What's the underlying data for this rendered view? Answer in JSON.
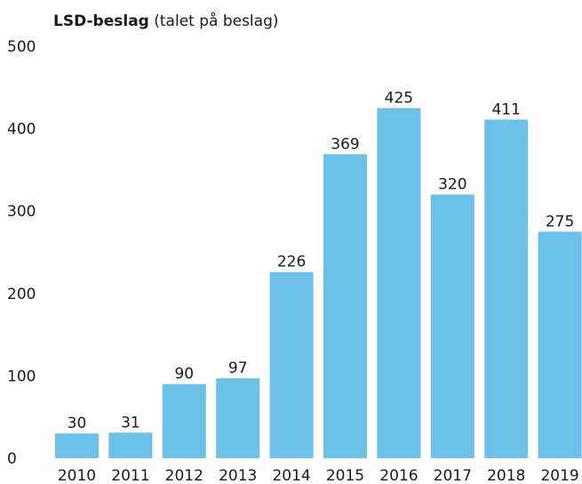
{
  "chart_data": {
    "type": "bar",
    "title": "LSD-beslag",
    "subtitle": "(talet på beslag)",
    "categories": [
      "2010",
      "2011",
      "2012",
      "2013",
      "2014",
      "2015",
      "2016",
      "2017",
      "2018",
      "2019"
    ],
    "values": [
      30,
      31,
      90,
      97,
      226,
      369,
      425,
      320,
      411,
      275
    ],
    "y_ticks": [
      0,
      100,
      200,
      300,
      400,
      500
    ],
    "ylim": [
      0,
      500
    ],
    "xlabel": "",
    "ylabel": "",
    "grid": false,
    "data_labels": true,
    "bar_color": "#6cc1ea",
    "text_color": "#1a1a1a"
  }
}
